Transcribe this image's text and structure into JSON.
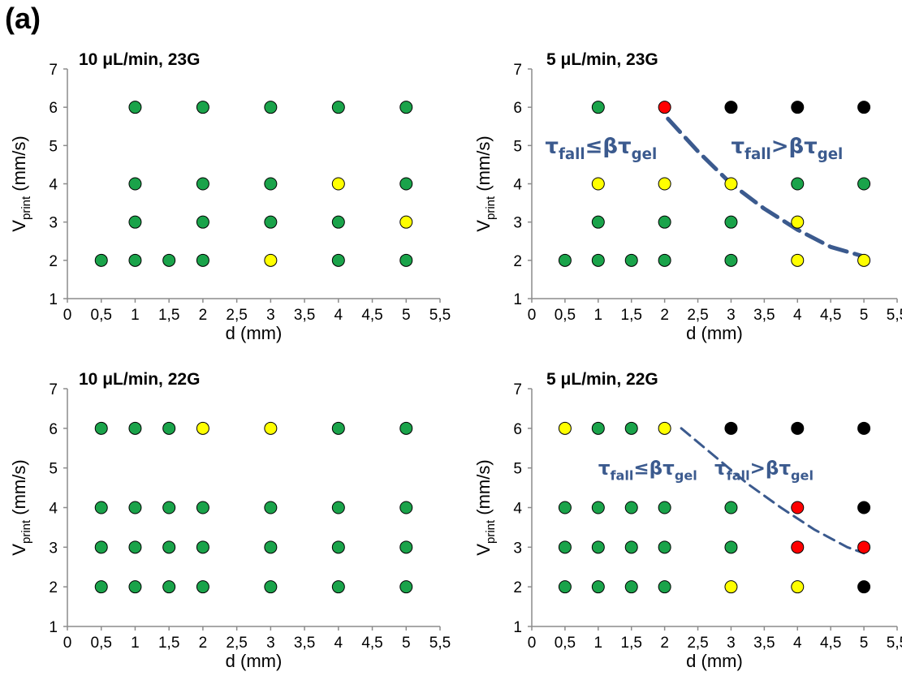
{
  "panel_label": "(a)",
  "colors": {
    "green": "#1aa34a",
    "yellow": "#ffff00",
    "red": "#ff0000",
    "black": "#000000",
    "curve": "#3b5a8e"
  },
  "chart_data": [
    {
      "type": "scatter",
      "title": "10 μL/min, 23G",
      "xlabel": "d (mm)",
      "ylabel_main": "V",
      "ylabel_sub": "print",
      "ylabel_unit": " (mm/s)",
      "xlim": [
        0,
        5.5
      ],
      "ylim": [
        1,
        7
      ],
      "xticks": [
        "0",
        "0,5",
        "1",
        "1,5",
        "2",
        "2,5",
        "3",
        "3,5",
        "4",
        "4,5",
        "5",
        "5,5"
      ],
      "yticks": [
        "1",
        "2",
        "3",
        "4",
        "5",
        "6",
        "7"
      ],
      "points": [
        {
          "x": 1,
          "y": 6,
          "color": "green"
        },
        {
          "x": 2,
          "y": 6,
          "color": "green"
        },
        {
          "x": 3,
          "y": 6,
          "color": "green"
        },
        {
          "x": 4,
          "y": 6,
          "color": "green"
        },
        {
          "x": 5,
          "y": 6,
          "color": "green"
        },
        {
          "x": 1,
          "y": 4,
          "color": "green"
        },
        {
          "x": 2,
          "y": 4,
          "color": "green"
        },
        {
          "x": 3,
          "y": 4,
          "color": "green"
        },
        {
          "x": 4,
          "y": 4,
          "color": "yellow"
        },
        {
          "x": 5,
          "y": 4,
          "color": "green"
        },
        {
          "x": 1,
          "y": 3,
          "color": "green"
        },
        {
          "x": 2,
          "y": 3,
          "color": "green"
        },
        {
          "x": 3,
          "y": 3,
          "color": "green"
        },
        {
          "x": 4,
          "y": 3,
          "color": "green"
        },
        {
          "x": 5,
          "y": 3,
          "color": "yellow"
        },
        {
          "x": 0.5,
          "y": 2,
          "color": "green"
        },
        {
          "x": 1,
          "y": 2,
          "color": "green"
        },
        {
          "x": 1.5,
          "y": 2,
          "color": "green"
        },
        {
          "x": 2,
          "y": 2,
          "color": "green"
        },
        {
          "x": 3,
          "y": 2,
          "color": "yellow"
        },
        {
          "x": 4,
          "y": 2,
          "color": "green"
        },
        {
          "x": 5,
          "y": 2,
          "color": "green"
        }
      ],
      "annotations": [],
      "curve": []
    },
    {
      "type": "scatter",
      "title": "5 μL/min, 23G",
      "xlabel": "d (mm)",
      "ylabel_main": "V",
      "ylabel_sub": "print",
      "ylabel_unit": " (mm/s)",
      "xlim": [
        0,
        5.5
      ],
      "ylim": [
        1,
        7
      ],
      "xticks": [
        "0",
        "0,5",
        "1",
        "1,5",
        "2",
        "2,5",
        "3",
        "3,5",
        "4",
        "4,5",
        "5",
        "5,5"
      ],
      "yticks": [
        "1",
        "2",
        "3",
        "4",
        "5",
        "6",
        "7"
      ],
      "points": [
        {
          "x": 1,
          "y": 6,
          "color": "green"
        },
        {
          "x": 2,
          "y": 6,
          "color": "red"
        },
        {
          "x": 3,
          "y": 6,
          "color": "black"
        },
        {
          "x": 4,
          "y": 6,
          "color": "black"
        },
        {
          "x": 5,
          "y": 6,
          "color": "black"
        },
        {
          "x": 1,
          "y": 4,
          "color": "yellow"
        },
        {
          "x": 2,
          "y": 4,
          "color": "yellow"
        },
        {
          "x": 3,
          "y": 4,
          "color": "yellow"
        },
        {
          "x": 4,
          "y": 4,
          "color": "green"
        },
        {
          "x": 5,
          "y": 4,
          "color": "green"
        },
        {
          "x": 1,
          "y": 3,
          "color": "green"
        },
        {
          "x": 2,
          "y": 3,
          "color": "green"
        },
        {
          "x": 3,
          "y": 3,
          "color": "green"
        },
        {
          "x": 4,
          "y": 3,
          "color": "yellow"
        },
        {
          "x": 0.5,
          "y": 2,
          "color": "green"
        },
        {
          "x": 1,
          "y": 2,
          "color": "green"
        },
        {
          "x": 1.5,
          "y": 2,
          "color": "green"
        },
        {
          "x": 2,
          "y": 2,
          "color": "green"
        },
        {
          "x": 3,
          "y": 2,
          "color": "green"
        },
        {
          "x": 4,
          "y": 2,
          "color": "yellow"
        },
        {
          "x": 5,
          "y": 2,
          "color": "yellow"
        }
      ],
      "annotations": [
        {
          "main": "τ",
          "sub1": "fall",
          "rel": "≤β",
          "tau2": "τ",
          "sub2": "gel",
          "x": 0.2,
          "y": 5,
          "size": 26
        },
        {
          "main": "τ",
          "sub1": "fall",
          "rel": ">β",
          "tau2": "τ",
          "sub2": "gel",
          "x": 3.0,
          "y": 5,
          "size": 26
        }
      ],
      "curve": [
        [
          2.05,
          5.7
        ],
        [
          2.5,
          4.85
        ],
        [
          3.0,
          4.0
        ],
        [
          3.5,
          3.35
        ],
        [
          4.0,
          2.8
        ],
        [
          4.5,
          2.35
        ],
        [
          5.0,
          2.1
        ]
      ],
      "curve_width": 5
    },
    {
      "type": "scatter",
      "title": "10 μL/min, 22G",
      "xlabel": "d (mm)",
      "ylabel_main": "V",
      "ylabel_sub": "print",
      "ylabel_unit": " (mm/s)",
      "xlim": [
        0,
        5.5
      ],
      "ylim": [
        1,
        7
      ],
      "xticks": [
        "0",
        "0,5",
        "1",
        "1,5",
        "2",
        "2,5",
        "3",
        "3,5",
        "4",
        "4,5",
        "5",
        "5,5"
      ],
      "yticks": [
        "1",
        "2",
        "3",
        "4",
        "5",
        "6",
        "7"
      ],
      "points": [
        {
          "x": 0.5,
          "y": 6,
          "color": "green"
        },
        {
          "x": 1,
          "y": 6,
          "color": "green"
        },
        {
          "x": 1.5,
          "y": 6,
          "color": "green"
        },
        {
          "x": 2,
          "y": 6,
          "color": "yellow"
        },
        {
          "x": 3,
          "y": 6,
          "color": "yellow"
        },
        {
          "x": 4,
          "y": 6,
          "color": "green"
        },
        {
          "x": 5,
          "y": 6,
          "color": "green"
        },
        {
          "x": 0.5,
          "y": 4,
          "color": "green"
        },
        {
          "x": 1,
          "y": 4,
          "color": "green"
        },
        {
          "x": 1.5,
          "y": 4,
          "color": "green"
        },
        {
          "x": 2,
          "y": 4,
          "color": "green"
        },
        {
          "x": 3,
          "y": 4,
          "color": "green"
        },
        {
          "x": 4,
          "y": 4,
          "color": "green"
        },
        {
          "x": 5,
          "y": 4,
          "color": "green"
        },
        {
          "x": 0.5,
          "y": 3,
          "color": "green"
        },
        {
          "x": 1,
          "y": 3,
          "color": "green"
        },
        {
          "x": 1.5,
          "y": 3,
          "color": "green"
        },
        {
          "x": 2,
          "y": 3,
          "color": "green"
        },
        {
          "x": 3,
          "y": 3,
          "color": "green"
        },
        {
          "x": 4,
          "y": 3,
          "color": "green"
        },
        {
          "x": 5,
          "y": 3,
          "color": "green"
        },
        {
          "x": 0.5,
          "y": 2,
          "color": "green"
        },
        {
          "x": 1,
          "y": 2,
          "color": "green"
        },
        {
          "x": 1.5,
          "y": 2,
          "color": "green"
        },
        {
          "x": 2,
          "y": 2,
          "color": "green"
        },
        {
          "x": 3,
          "y": 2,
          "color": "green"
        },
        {
          "x": 4,
          "y": 2,
          "color": "green"
        },
        {
          "x": 5,
          "y": 2,
          "color": "green"
        }
      ],
      "annotations": [],
      "curve": []
    },
    {
      "type": "scatter",
      "title": "5 μL/min, 22G",
      "xlabel": "d (mm)",
      "ylabel_main": "V",
      "ylabel_sub": "print",
      "ylabel_unit": " (mm/s)",
      "xlim": [
        0,
        5.5
      ],
      "ylim": [
        1,
        7
      ],
      "xticks": [
        "0",
        "0,5",
        "1",
        "1,5",
        "2",
        "2,5",
        "3",
        "3,5",
        "4",
        "4,5",
        "5",
        "5,5"
      ],
      "yticks": [
        "1",
        "2",
        "3",
        "4",
        "5",
        "6",
        "7"
      ],
      "points": [
        {
          "x": 0.5,
          "y": 6,
          "color": "yellow"
        },
        {
          "x": 1,
          "y": 6,
          "color": "green"
        },
        {
          "x": 1.5,
          "y": 6,
          "color": "green"
        },
        {
          "x": 2,
          "y": 6,
          "color": "yellow"
        },
        {
          "x": 3,
          "y": 6,
          "color": "black"
        },
        {
          "x": 4,
          "y": 6,
          "color": "black"
        },
        {
          "x": 5,
          "y": 6,
          "color": "black"
        },
        {
          "x": 0.5,
          "y": 4,
          "color": "green"
        },
        {
          "x": 1,
          "y": 4,
          "color": "green"
        },
        {
          "x": 1.5,
          "y": 4,
          "color": "green"
        },
        {
          "x": 2,
          "y": 4,
          "color": "green"
        },
        {
          "x": 3,
          "y": 4,
          "color": "green"
        },
        {
          "x": 4,
          "y": 4,
          "color": "red"
        },
        {
          "x": 5,
          "y": 4,
          "color": "black"
        },
        {
          "x": 0.5,
          "y": 3,
          "color": "green"
        },
        {
          "x": 1,
          "y": 3,
          "color": "green"
        },
        {
          "x": 1.5,
          "y": 3,
          "color": "green"
        },
        {
          "x": 2,
          "y": 3,
          "color": "green"
        },
        {
          "x": 3,
          "y": 3,
          "color": "green"
        },
        {
          "x": 4,
          "y": 3,
          "color": "red"
        },
        {
          "x": 5,
          "y": 3,
          "color": "red"
        },
        {
          "x": 0.5,
          "y": 2,
          "color": "green"
        },
        {
          "x": 1,
          "y": 2,
          "color": "green"
        },
        {
          "x": 1.5,
          "y": 2,
          "color": "green"
        },
        {
          "x": 2,
          "y": 2,
          "color": "green"
        },
        {
          "x": 3,
          "y": 2,
          "color": "yellow"
        },
        {
          "x": 4,
          "y": 2,
          "color": "yellow"
        },
        {
          "x": 5,
          "y": 2,
          "color": "black"
        }
      ],
      "annotations": [
        {
          "main": "τ",
          "sub1": "fall",
          "rel": "≤β",
          "tau2": "τ",
          "sub2": "gel",
          "x": 1.0,
          "y": 5.0,
          "size": 23
        },
        {
          "main": "τ",
          "sub1": "fall",
          "rel": ">β",
          "tau2": "τ",
          "sub2": "gel",
          "x": 2.75,
          "y": 5.0,
          "size": 23
        }
      ],
      "curve": [
        [
          2.25,
          6.0
        ],
        [
          2.75,
          5.3
        ],
        [
          3.25,
          4.6
        ],
        [
          3.75,
          4.0
        ],
        [
          4.25,
          3.45
        ],
        [
          4.75,
          3.0
        ],
        [
          5.0,
          2.85
        ]
      ],
      "curve_width": 3
    }
  ]
}
